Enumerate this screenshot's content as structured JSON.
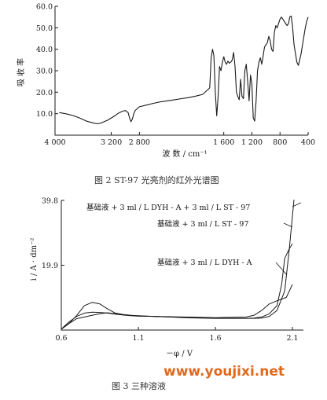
{
  "colors": {
    "ink": "#1a1a1a",
    "watermark": "#e0691c"
  },
  "watermark": "www.youjixi.net",
  "chart_data": [
    {
      "type": "line",
      "caption": "图 2   ST-97 光亮剂的红外光谱图",
      "xlabel": "波 数 / cm⁻¹",
      "ylabel": "吸 收 率",
      "xlim": [
        4000,
        400
      ],
      "ylim": [
        0,
        60
      ],
      "xticks": [
        "4 000",
        "3 200",
        "2 800",
        "1 600",
        "1 200",
        "800",
        "400"
      ],
      "xtick_values": [
        4000,
        3200,
        2800,
        1600,
        1200,
        800,
        400
      ],
      "yticks": [
        "10.0",
        "20.0",
        "30.0",
        "40.0",
        "50.0",
        "60.0"
      ],
      "ytick_values": [
        10,
        20,
        30,
        40,
        50,
        60
      ],
      "grid": false,
      "series": [
        {
          "x": [
            3940,
            3850,
            3750,
            3650,
            3550,
            3450,
            3400,
            3350,
            3300,
            3250,
            3200,
            3150,
            3100,
            3050,
            3000,
            2960,
            2940,
            2920,
            2900,
            2880,
            2860,
            2800,
            2700,
            2600,
            2500,
            2400,
            2300,
            2200,
            2100,
            2000,
            1900,
            1800,
            1780,
            1760,
            1740,
            1720,
            1700,
            1680,
            1660,
            1640,
            1620,
            1600,
            1580,
            1560,
            1540,
            1520,
            1500,
            1480,
            1460,
            1440,
            1420,
            1400,
            1380,
            1360,
            1340,
            1320,
            1300,
            1280,
            1260,
            1240,
            1220,
            1200,
            1180,
            1160,
            1140,
            1120,
            1100,
            1080,
            1060,
            1040,
            1020,
            1000,
            980,
            960,
            940,
            920,
            900,
            880,
            860,
            840,
            820,
            800,
            780,
            760,
            740,
            720,
            700,
            680,
            660,
            640,
            620,
            600,
            580,
            560,
            540,
            520,
            500,
            480,
            460,
            440,
            420,
            400
          ],
          "y": [
            10.5,
            10.0,
            9.2,
            8.0,
            6.5,
            5.6,
            5.3,
            5.6,
            6.3,
            7.0,
            8.0,
            9.0,
            10.2,
            11.0,
            11.5,
            10.5,
            8.0,
            6.3,
            7.5,
            10.0,
            11.5,
            13.2,
            14.0,
            14.8,
            15.5,
            16.0,
            16.5,
            17.0,
            17.5,
            18.2,
            19.0,
            22.0,
            36.0,
            40.0,
            37.0,
            20.0,
            9.0,
            18.0,
            32.0,
            30.0,
            34.0,
            36.5,
            34.0,
            33.0,
            34.5,
            33.5,
            34.0,
            35.0,
            38.5,
            32.0,
            20.0,
            18.0,
            16.5,
            26.0,
            18.0,
            17.0,
            30.0,
            33.0,
            25.0,
            16.0,
            28.0,
            24.0,
            8.0,
            6.5,
            16.0,
            30.0,
            34.0,
            36.0,
            33.0,
            37.0,
            41.0,
            42.0,
            43.0,
            46.0,
            44.0,
            40.0,
            39.0,
            48.0,
            51.0,
            50.0,
            52.0,
            54.0,
            55.0,
            54.0,
            53.0,
            52.0,
            51.0,
            52.0,
            55.0,
            55.5,
            50.0,
            42.0,
            38.0,
            34.0,
            32.5,
            35.0,
            38.0,
            42.0,
            46.0,
            50.0,
            53.0,
            55.0
          ]
        }
      ]
    },
    {
      "type": "line",
      "caption": "图 3   三种溶液",
      "xlabel": "－φ / V",
      "ylabel": "i / A · dm⁻²",
      "xlim": [
        0.6,
        2.1
      ],
      "ylim": [
        0,
        39.8
      ],
      "xticks": [
        "0.6",
        "1.1",
        "1.6",
        "2.1"
      ],
      "xtick_values": [
        0.6,
        1.1,
        1.6,
        2.1
      ],
      "yticks": [
        "19.9",
        "39.8"
      ],
      "ytick_values": [
        19.9,
        39.8
      ],
      "grid": false,
      "series": [
        {
          "name": "基础液 + 3 ml / L DYH - A",
          "x": [
            0.6,
            0.65,
            0.7,
            0.75,
            0.8,
            0.85,
            0.9,
            0.95,
            1.0,
            1.05,
            1.1,
            1.2,
            1.3,
            1.4,
            1.5,
            1.6,
            1.7,
            1.8,
            1.85,
            1.9,
            1.95,
            2.0,
            2.03,
            2.06,
            2.08,
            2.1
          ],
          "y": [
            0.3,
            2.5,
            4.2,
            5.2,
            5.5,
            5.4,
            5.2,
            4.9,
            4.6,
            4.4,
            4.3,
            4.2,
            4.1,
            4.0,
            3.9,
            3.8,
            3.9,
            4.0,
            4.5,
            6.0,
            8.0,
            9.0,
            9.5,
            10.0,
            12.0,
            14.0
          ]
        },
        {
          "name": "基础液 + 3 ml / L ST - 97",
          "x": [
            0.6,
            0.65,
            0.7,
            0.75,
            0.8,
            0.85,
            0.9,
            0.95,
            1.0,
            1.05,
            1.1,
            1.2,
            1.3,
            1.4,
            1.5,
            1.6,
            1.7,
            1.8,
            1.85,
            1.9,
            1.95,
            2.0,
            2.03,
            2.05,
            2.08,
            2.1
          ],
          "y": [
            0.3,
            2.0,
            3.5,
            4.0,
            4.5,
            5.0,
            5.3,
            5.0,
            4.7,
            4.5,
            4.4,
            4.2,
            4.0,
            3.8,
            3.7,
            3.6,
            3.6,
            3.6,
            3.7,
            4.0,
            5.0,
            7.5,
            14.0,
            22.0,
            25.0,
            26.5
          ]
        },
        {
          "name": "基础液 + 3 ml / L DYH - A + 3 ml / L ST - 97",
          "x": [
            0.6,
            0.65,
            0.7,
            0.75,
            0.8,
            0.85,
            0.9,
            0.95,
            1.0,
            1.05,
            1.1,
            1.2,
            1.3,
            1.4,
            1.5,
            1.6,
            1.7,
            1.8,
            1.85,
            1.9,
            1.95,
            2.0,
            2.05,
            2.08,
            2.1,
            2.11
          ],
          "y": [
            0.3,
            2.0,
            4.5,
            7.5,
            8.5,
            8.0,
            6.5,
            5.2,
            4.8,
            4.5,
            4.3,
            4.2,
            4.0,
            3.9,
            3.8,
            3.7,
            3.6,
            3.6,
            3.6,
            3.7,
            4.2,
            6.0,
            12.0,
            25.0,
            35.0,
            40.0
          ]
        }
      ]
    }
  ]
}
